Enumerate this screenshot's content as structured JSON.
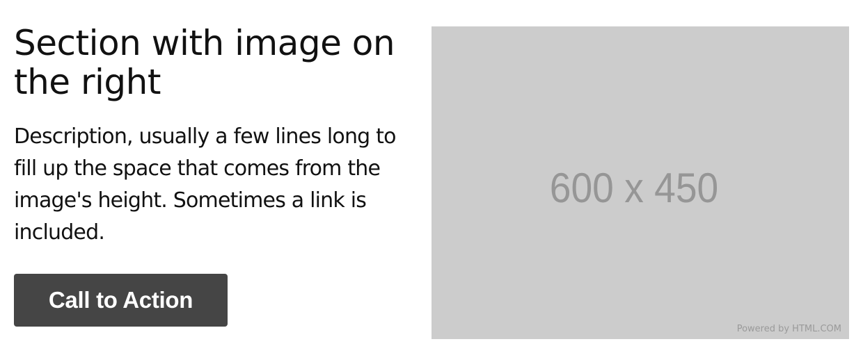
{
  "section": {
    "heading": "Section with image on the right",
    "description": "Description, usually a few lines long to fill up the space that comes from the image's height. Sometimes a link is included.",
    "cta_label": "Call to Action"
  },
  "image": {
    "dimensions_text": "600 x 450",
    "powered_by": "Powered by HTML.COM"
  },
  "colors": {
    "cta_background": "#454545",
    "placeholder_background": "#cccccc",
    "placeholder_text": "#969696"
  }
}
